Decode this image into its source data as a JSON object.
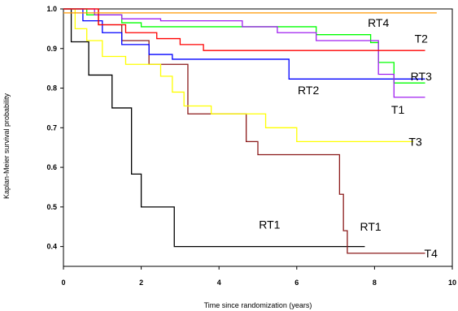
{
  "chart_data": {
    "type": "line",
    "step": true,
    "xlabel": "Time since randomization (years)",
    "ylabel": "Kaplan-Meier survival probability",
    "xlim": [
      0,
      10
    ],
    "ylim": [
      0.35,
      1.0
    ],
    "xticks": [
      "0",
      "2",
      "4",
      "6",
      "8",
      "10"
    ],
    "yticks": [
      "0.4",
      "0.5",
      "0.6",
      "0.7",
      "0.8",
      "0.9",
      "1.0"
    ],
    "grid": false,
    "series": [
      {
        "name": "RT1",
        "color": "#000000",
        "x": [
          0,
          0.2,
          0.65,
          1.25,
          1.75,
          2.0,
          2.85,
          7.75
        ],
        "y": [
          1.0,
          0.917,
          0.833,
          0.75,
          0.583,
          0.5,
          0.4,
          0.4
        ]
      },
      {
        "name": "T4",
        "color": "#8b1a1a",
        "x": [
          0,
          0.9,
          1.5,
          2.2,
          3.2,
          4.7,
          5.0,
          6.9,
          7.1,
          7.2,
          7.3,
          9.3
        ],
        "y": [
          1.0,
          0.96,
          0.92,
          0.86,
          0.735,
          0.665,
          0.632,
          0.632,
          0.532,
          0.44,
          0.383,
          0.383
        ]
      },
      {
        "name": "T3",
        "color": "#ffff00",
        "x": [
          0,
          0.3,
          0.6,
          1.0,
          1.6,
          2.5,
          2.8,
          3.1,
          3.8,
          5.2,
          6.0,
          9.0
        ],
        "y": [
          1.0,
          0.95,
          0.92,
          0.88,
          0.86,
          0.83,
          0.79,
          0.755,
          0.735,
          0.7,
          0.665,
          0.665
        ]
      },
      {
        "name": "RT2",
        "color": "#0000ff",
        "x": [
          0,
          0.5,
          1.0,
          1.5,
          2.2,
          2.8,
          5.8,
          9.3
        ],
        "y": [
          1.0,
          0.97,
          0.94,
          0.91,
          0.885,
          0.873,
          0.823,
          0.823
        ]
      },
      {
        "name": "RT3",
        "color": "#00ff00",
        "x": [
          0,
          0.6,
          1.5,
          2.0,
          5.9,
          6.5,
          7.9,
          8.1,
          8.5,
          9.3
        ],
        "y": [
          1.0,
          0.985,
          0.965,
          0.955,
          0.955,
          0.935,
          0.915,
          0.865,
          0.813,
          0.813
        ]
      },
      {
        "name": "T1",
        "color": "#a020f0",
        "x": [
          0,
          0.8,
          1.5,
          2.5,
          4.6,
          5.5,
          6.5,
          8.1,
          8.5,
          9.3
        ],
        "y": [
          1.0,
          0.985,
          0.975,
          0.97,
          0.955,
          0.94,
          0.92,
          0.835,
          0.777,
          0.777
        ]
      },
      {
        "name": "T2",
        "color": "#ff0000",
        "x": [
          0,
          0.9,
          1.6,
          2.4,
          3.0,
          3.6,
          8.1,
          9.3
        ],
        "y": [
          1.0,
          0.96,
          0.94,
          0.925,
          0.91,
          0.895,
          0.895,
          0.895
        ]
      },
      {
        "name": "RT4",
        "color": "#ff9900",
        "x": [
          0,
          9.6
        ],
        "y": [
          0.99,
          0.99
        ]
      }
    ],
    "labels": [
      {
        "text": "RT4",
        "x": 8.1,
        "y": 0.955
      },
      {
        "text": "T2",
        "x": 9.2,
        "y": 0.915
      },
      {
        "text": "RT3",
        "x": 9.2,
        "y": 0.82
      },
      {
        "text": "RT2",
        "x": 6.3,
        "y": 0.785
      },
      {
        "text": "T1",
        "x": 8.6,
        "y": 0.735
      },
      {
        "text": "T3",
        "x": 9.05,
        "y": 0.655
      },
      {
        "text": "RT1",
        "x": 5.3,
        "y": 0.445
      },
      {
        "text": "RT1",
        "x": 7.9,
        "y": 0.44
      },
      {
        "text": "T4",
        "x": 9.45,
        "y": 0.373
      }
    ]
  }
}
